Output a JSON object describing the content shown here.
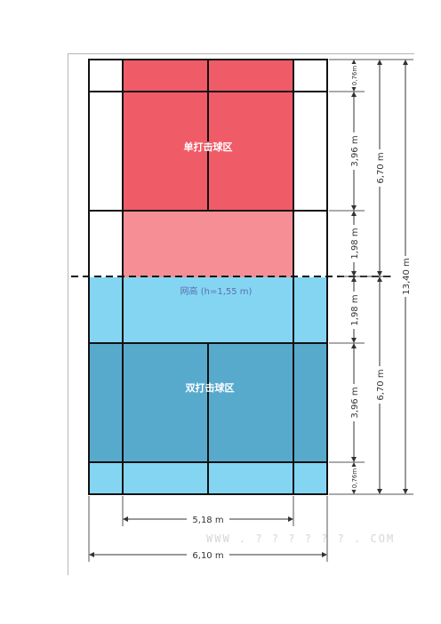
{
  "diagram": {
    "labels": {
      "singles_zone": "单打击球区",
      "doubles_zone": "双打击球区",
      "net": "网高 (h=1,55 m)"
    },
    "dimensions": {
      "back_top": "0,76m",
      "service_top": "3,96 m",
      "front_top": "1,98 m",
      "front_bottom": "1,98 m",
      "service_bottom": "3,96 m",
      "back_bottom": "0,76m",
      "half_top": "6,70 m",
      "half_bottom": "6,70 m",
      "total_length": "13,40 m",
      "singles_width": "5,18 m",
      "doubles_width": "6,10 m"
    },
    "watermark": "WWW . ? ? ? ? ? ? . COM",
    "colors": {
      "singles_dark": "#ef5b67",
      "singles_light": "#f58f95",
      "doubles_light": "#84d5f2",
      "doubles_dark": "#58aacd",
      "net_text": "#5a6fb5"
    }
  }
}
